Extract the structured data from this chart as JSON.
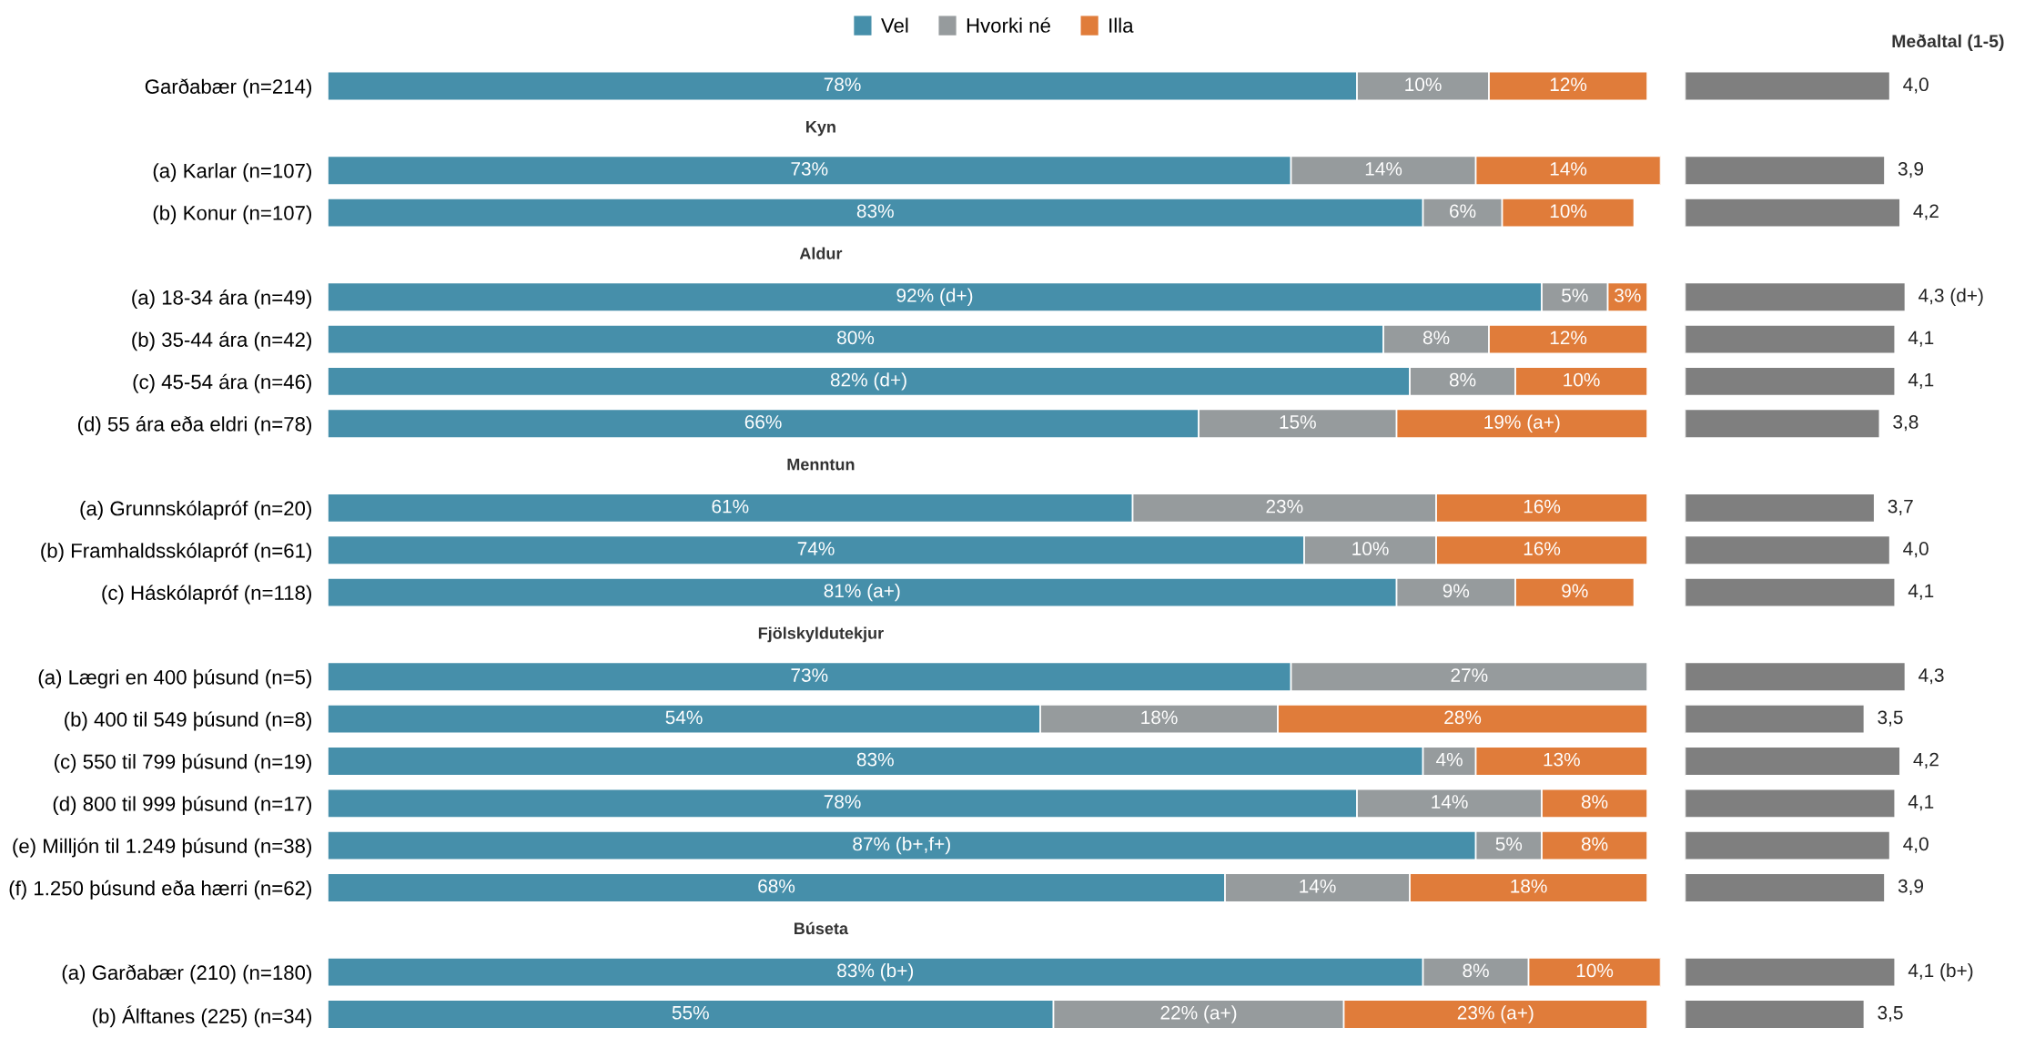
{
  "chart_data": [
    {
      "type": "bar",
      "orientation": "horizontal",
      "stacked": true,
      "legend": "top",
      "grid": false,
      "tick_labels": "y",
      "xlim": [
        0,
        101
      ],
      "categories": [
        "Garðabær (n=214)",
        "Kyn",
        "(a) Karlar (n=107)",
        "(b) Konur (n=107)",
        "Aldur",
        "(a) 18-34 ára (n=49)",
        "(b) 35-44 ára (n=42)",
        "(c) 45-54 ára (n=46)",
        "(d) 55 ára eða eldri (n=78)",
        "Menntun",
        "(a) Grunnskólapróf (n=20)",
        "(b) Framhaldsskólapróf (n=61)",
        "(c) Háskólapróf (n=118)",
        "Fjölskyldutekjur",
        "(a) Lægri en 400 þúsund (n=5)",
        "(b) 400 til 549 þúsund (n=8)",
        "(c) 550 til 799 þúsund (n=19)",
        "(d) 800 til 999 þúsund (n=17)",
        "(e) Milljón til 1.249 þúsund (n=38)",
        "(f) 1.250 þúsund eða hærri (n=62)",
        "Búseta",
        "(a) Garðabær (210) (n=180)",
        "(b) Álftanes (225) (n=34)"
      ],
      "series": [
        {
          "name": "Vel",
          "color": "#468faa",
          "values": [
            78,
            null,
            73,
            83,
            null,
            92,
            80,
            82,
            66,
            null,
            61,
            74,
            81,
            null,
            73,
            54,
            83,
            78,
            87,
            68,
            null,
            83,
            55
          ],
          "value_labels": [
            "78%",
            null,
            "73%",
            "83%",
            null,
            "92% (d+)",
            "80%",
            "82% (d+)",
            "66%",
            null,
            "61%",
            "74%",
            "81% (a+)",
            null,
            "73%",
            "54%",
            "83%",
            "78%",
            "87% (b+,f+)",
            "68%",
            null,
            "83% (b+)",
            "55%"
          ]
        },
        {
          "name": "Hvorki né",
          "color": "#969b9d",
          "values": [
            10,
            null,
            14,
            6,
            null,
            5,
            8,
            8,
            15,
            null,
            23,
            10,
            9,
            null,
            27,
            18,
            4,
            14,
            5,
            14,
            null,
            8,
            22
          ],
          "value_labels": [
            "10%",
            null,
            "14%",
            "6%",
            null,
            "5%",
            "8%",
            "8%",
            "15%",
            null,
            "23%",
            "10%",
            "9%",
            null,
            "27%",
            "18%",
            "4%",
            "14%",
            "5%",
            "14%",
            null,
            "8%",
            "22% (a+)"
          ]
        },
        {
          "name": "Illa",
          "color": "#e07c3a",
          "values": [
            12,
            null,
            14,
            10,
            null,
            3,
            12,
            10,
            19,
            null,
            16,
            16,
            9,
            null,
            null,
            28,
            13,
            8,
            8,
            18,
            null,
            10,
            23
          ],
          "value_labels": [
            "12%",
            null,
            "14%",
            "10%",
            null,
            "3%",
            "12%",
            "10%",
            "19% (a+)",
            null,
            "16%",
            "16%",
            "9%",
            null,
            null,
            "28%",
            "13%",
            "8%",
            "8%",
            "18%",
            null,
            "10%",
            "23% (a+)"
          ]
        }
      ]
    },
    {
      "type": "bar",
      "orientation": "horizontal",
      "title": "Meðaltal (1-5)",
      "grid": false,
      "tick_labels": false,
      "categories": [
        null,
        null,
        null,
        null,
        null,
        null,
        null,
        null,
        null,
        null,
        null,
        null,
        null,
        null,
        null,
        null,
        null,
        null,
        null,
        null,
        null,
        null,
        null
      ],
      "series": [
        {
          "color": "#7f7f7f",
          "values": [
            4.0,
            null,
            3.9,
            4.2,
            null,
            4.3,
            4.1,
            4.1,
            3.8,
            null,
            3.7,
            4.0,
            4.1,
            null,
            4.3,
            3.5,
            4.2,
            4.1,
            4.0,
            3.9,
            null,
            4.1,
            3.5
          ],
          "value_labels": [
            "4,0",
            null,
            "3,9",
            "4,2",
            null,
            "4,3 (d+)",
            "4,1",
            "4,1",
            "3,8",
            null,
            "3,7",
            "4,0",
            "4,1",
            null,
            "4,3",
            "3,5",
            "4,2",
            "4,1",
            "4,0",
            "3,9",
            null,
            "4,1 (b+)",
            "3,5"
          ]
        }
      ]
    }
  ]
}
